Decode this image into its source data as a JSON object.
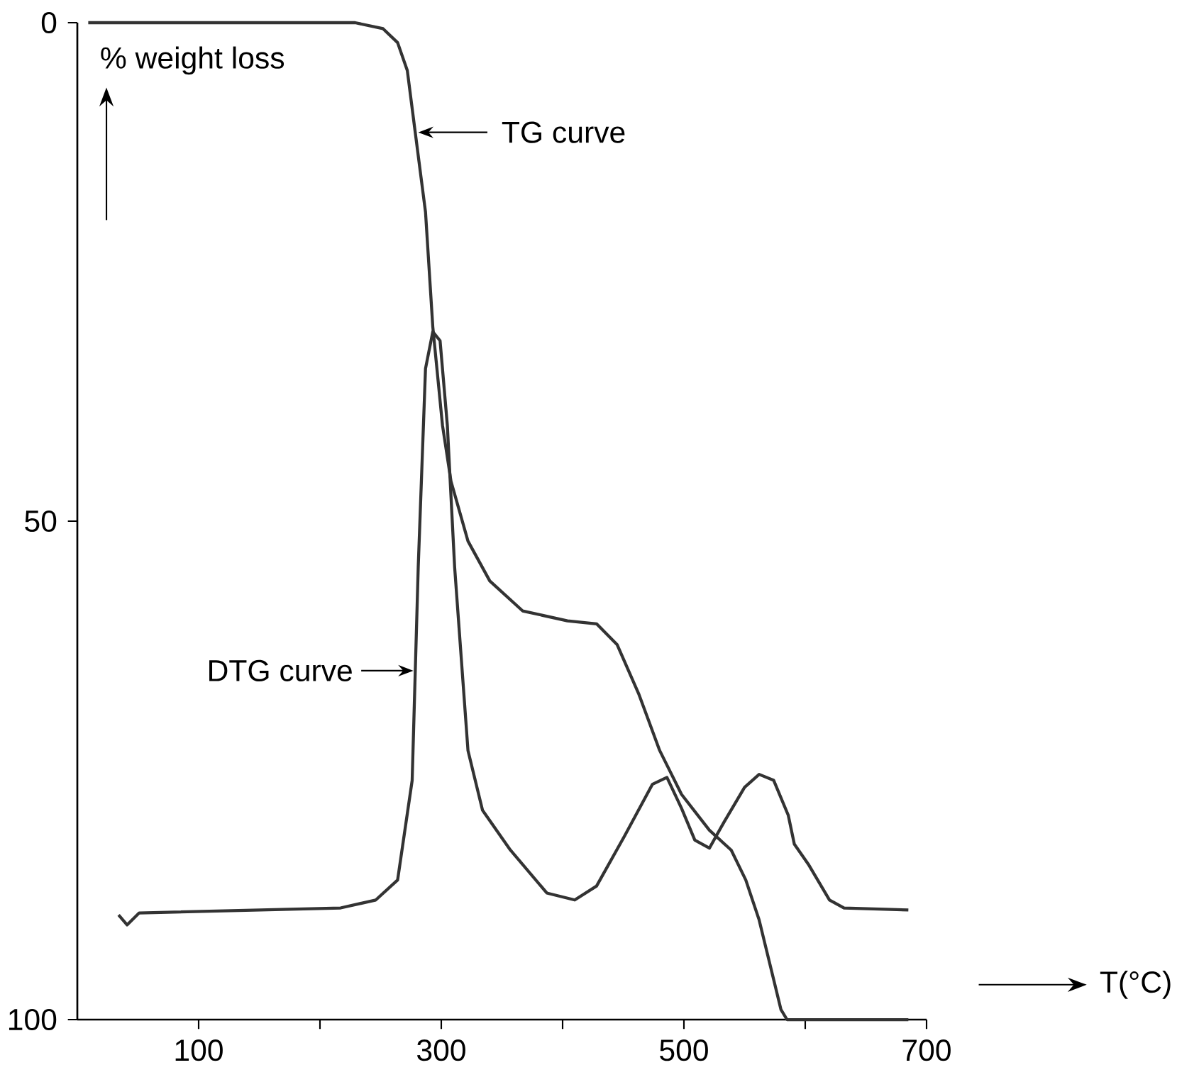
{
  "chart_data": {
    "type": "line",
    "ylabel": "% weight loss",
    "xlabel": "T(°C)",
    "xlim": [
      0,
      700
    ],
    "ylim": [
      100,
      0
    ],
    "xticks": [
      100,
      {
        "value": 200,
        "label": null
      },
      300,
      {
        "value": 400,
        "label": null
      },
      500,
      {
        "value": 600,
        "label": null
      },
      700
    ],
    "yticks": [
      0,
      50,
      100
    ],
    "marker": "none",
    "line_style": "solid",
    "series": [
      {
        "name": "TG curve",
        "color": "#333333",
        "x": [
          9,
          170,
          229,
          252,
          264,
          272,
          278,
          287,
          293,
          301,
          308,
          322,
          340,
          367,
          404,
          428,
          445,
          463,
          480,
          498,
          521,
          539,
          551,
          562,
          574,
          580,
          585,
          685
        ],
        "values": [
          0,
          0,
          0,
          0.6,
          2,
          4.8,
          10.5,
          19,
          30.5,
          40.4,
          46,
          52,
          56,
          59,
          60,
          60.3,
          62.4,
          67.4,
          73,
          77.4,
          81,
          83,
          86,
          90,
          96,
          99,
          100,
          100
        ]
      },
      {
        "name": "DTG curve",
        "color": "#333333",
        "x": [
          34,
          41,
          51,
          217,
          246,
          264,
          276,
          281,
          287,
          293,
          299,
          305,
          311,
          322,
          334,
          357,
          387,
          410,
          428,
          451,
          474,
          486,
          498,
          509,
          521,
          533,
          550,
          562,
          574,
          586,
          591,
          603,
          620,
          632,
          685
        ],
        "values": [
          89.5,
          90.5,
          89.3,
          88.8,
          88,
          86,
          76,
          54.6,
          34.7,
          31,
          31.9,
          40.4,
          54.6,
          73,
          79,
          83,
          87.3,
          88,
          86.6,
          81.6,
          76.4,
          75.7,
          78.8,
          82,
          82.8,
          80.2,
          76.7,
          75.4,
          76,
          79.5,
          82.4,
          84.5,
          88,
          88.8,
          89
        ]
      }
    ]
  }
}
